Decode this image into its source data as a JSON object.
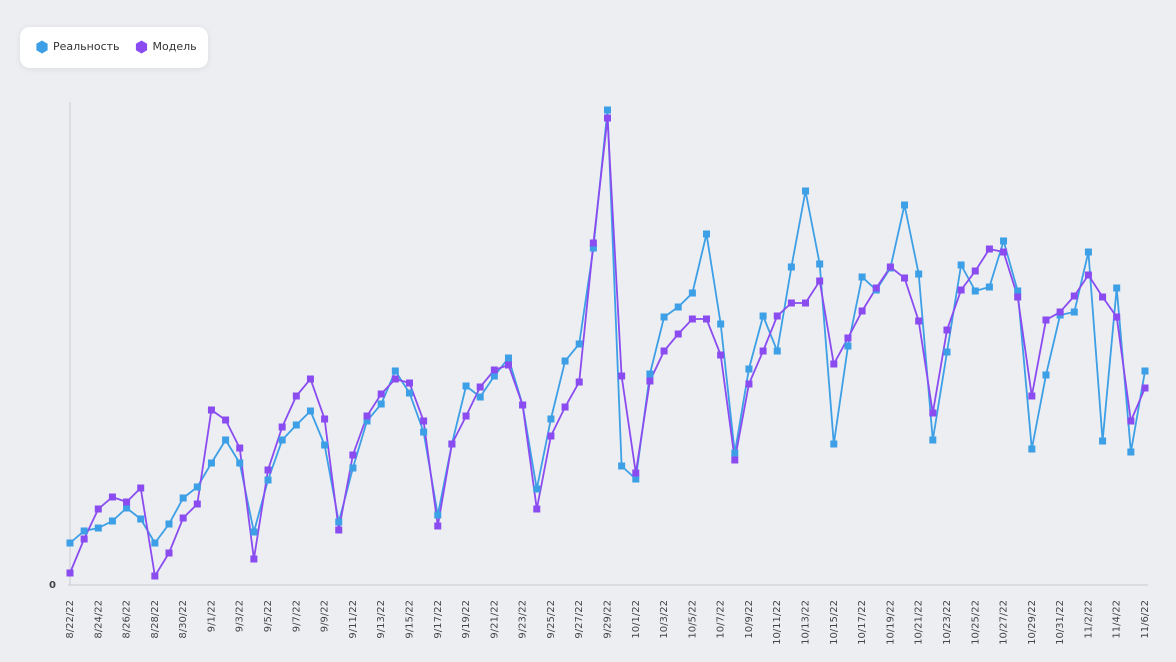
{
  "chart_data": {
    "type": "line",
    "legend": "top-left",
    "categories": [
      "8/22/22",
      null,
      "8/24/22",
      null,
      "8/26/22",
      null,
      "8/28/22",
      null,
      "8/30/22",
      null,
      "9/1/22",
      null,
      "9/3/22",
      null,
      "9/5/22",
      null,
      "9/7/22",
      null,
      "9/9/22",
      null,
      "9/11/22",
      null,
      "9/13/22",
      null,
      "9/15/22",
      null,
      "9/17/22",
      null,
      "9/19/22",
      null,
      "9/21/22",
      null,
      "9/23/22",
      null,
      "9/25/22",
      null,
      "9/27/22",
      null,
      "9/29/22",
      null,
      "10/1/22",
      null,
      "10/3/22",
      null,
      "10/5/22",
      null,
      "10/7/22",
      null,
      "10/9/22",
      null,
      "10/11/22",
      null,
      "10/13/22",
      null,
      "10/15/22",
      null,
      "10/17/22",
      null,
      "10/19/22",
      null,
      "10/21/22",
      null,
      "10/23/22",
      null,
      "10/25/22",
      null,
      "10/27/22",
      null,
      "10/29/22",
      null,
      "10/31/22",
      null,
      "11/2/22",
      null,
      "11/4/22",
      null,
      "11/6/22"
    ],
    "series": [
      {
        "name": "Реальность",
        "color": "#3d9fe6",
        "values": [
          8.4,
          10.8,
          11.4,
          12.8,
          15.4,
          13.2,
          8.4,
          12.2,
          17.4,
          19.6,
          24.4,
          29,
          24.4,
          10.6,
          21,
          29,
          32,
          34.8,
          28,
          12.6,
          23.4,
          32.8,
          36.2,
          42.8,
          38.4,
          30.6,
          14,
          28.2,
          39.8,
          37.6,
          41.8,
          45.4,
          36,
          19.2,
          33.2,
          44.8,
          48.2,
          67.4,
          95,
          23.8,
          21.2,
          42.2,
          53.6,
          55.6,
          58.4,
          70.2,
          52.2,
          26.4,
          43.2,
          53.8,
          46.8,
          63.6,
          78.8,
          64.2,
          28.2,
          47.8,
          61.6,
          59,
          63.4,
          76,
          62.2,
          29,
          46.6,
          64,
          58.8,
          59.6,
          68.8,
          58.8,
          27.2,
          42,
          54,
          54.6,
          66.6,
          28.8,
          59.4,
          26.6,
          42.8
        ]
      },
      {
        "name": "Модель",
        "color": "#8a4cf0",
        "values": [
          2.4,
          9.2,
          15.2,
          17.6,
          16.6,
          19.4,
          1.8,
          6.4,
          13.4,
          16.2,
          35,
          33,
          27.4,
          5.2,
          23,
          31.6,
          37.8,
          41.2,
          33.2,
          11,
          26,
          33.8,
          38.2,
          41.2,
          40.4,
          32.8,
          11.8,
          28.2,
          33.8,
          39.6,
          43,
          44,
          36,
          15.2,
          29.8,
          35.6,
          40.6,
          68.4,
          93.4,
          41.8,
          22.4,
          40.8,
          46.8,
          50.2,
          53.2,
          53.2,
          46,
          25,
          40.2,
          46.8,
          53.8,
          56.4,
          56.4,
          60.8,
          44.2,
          49.4,
          54.8,
          59.4,
          63.6,
          61.4,
          52.8,
          34.4,
          51,
          59,
          62.8,
          67.2,
          66.6,
          57.6,
          37.8,
          53,
          54.6,
          57.8,
          62,
          57.6,
          53.6,
          32.8,
          39.4
        ]
      }
    ],
    "ylim": [
      0,
      100
    ],
    "yticks": [
      0
    ],
    "grid": false
  }
}
